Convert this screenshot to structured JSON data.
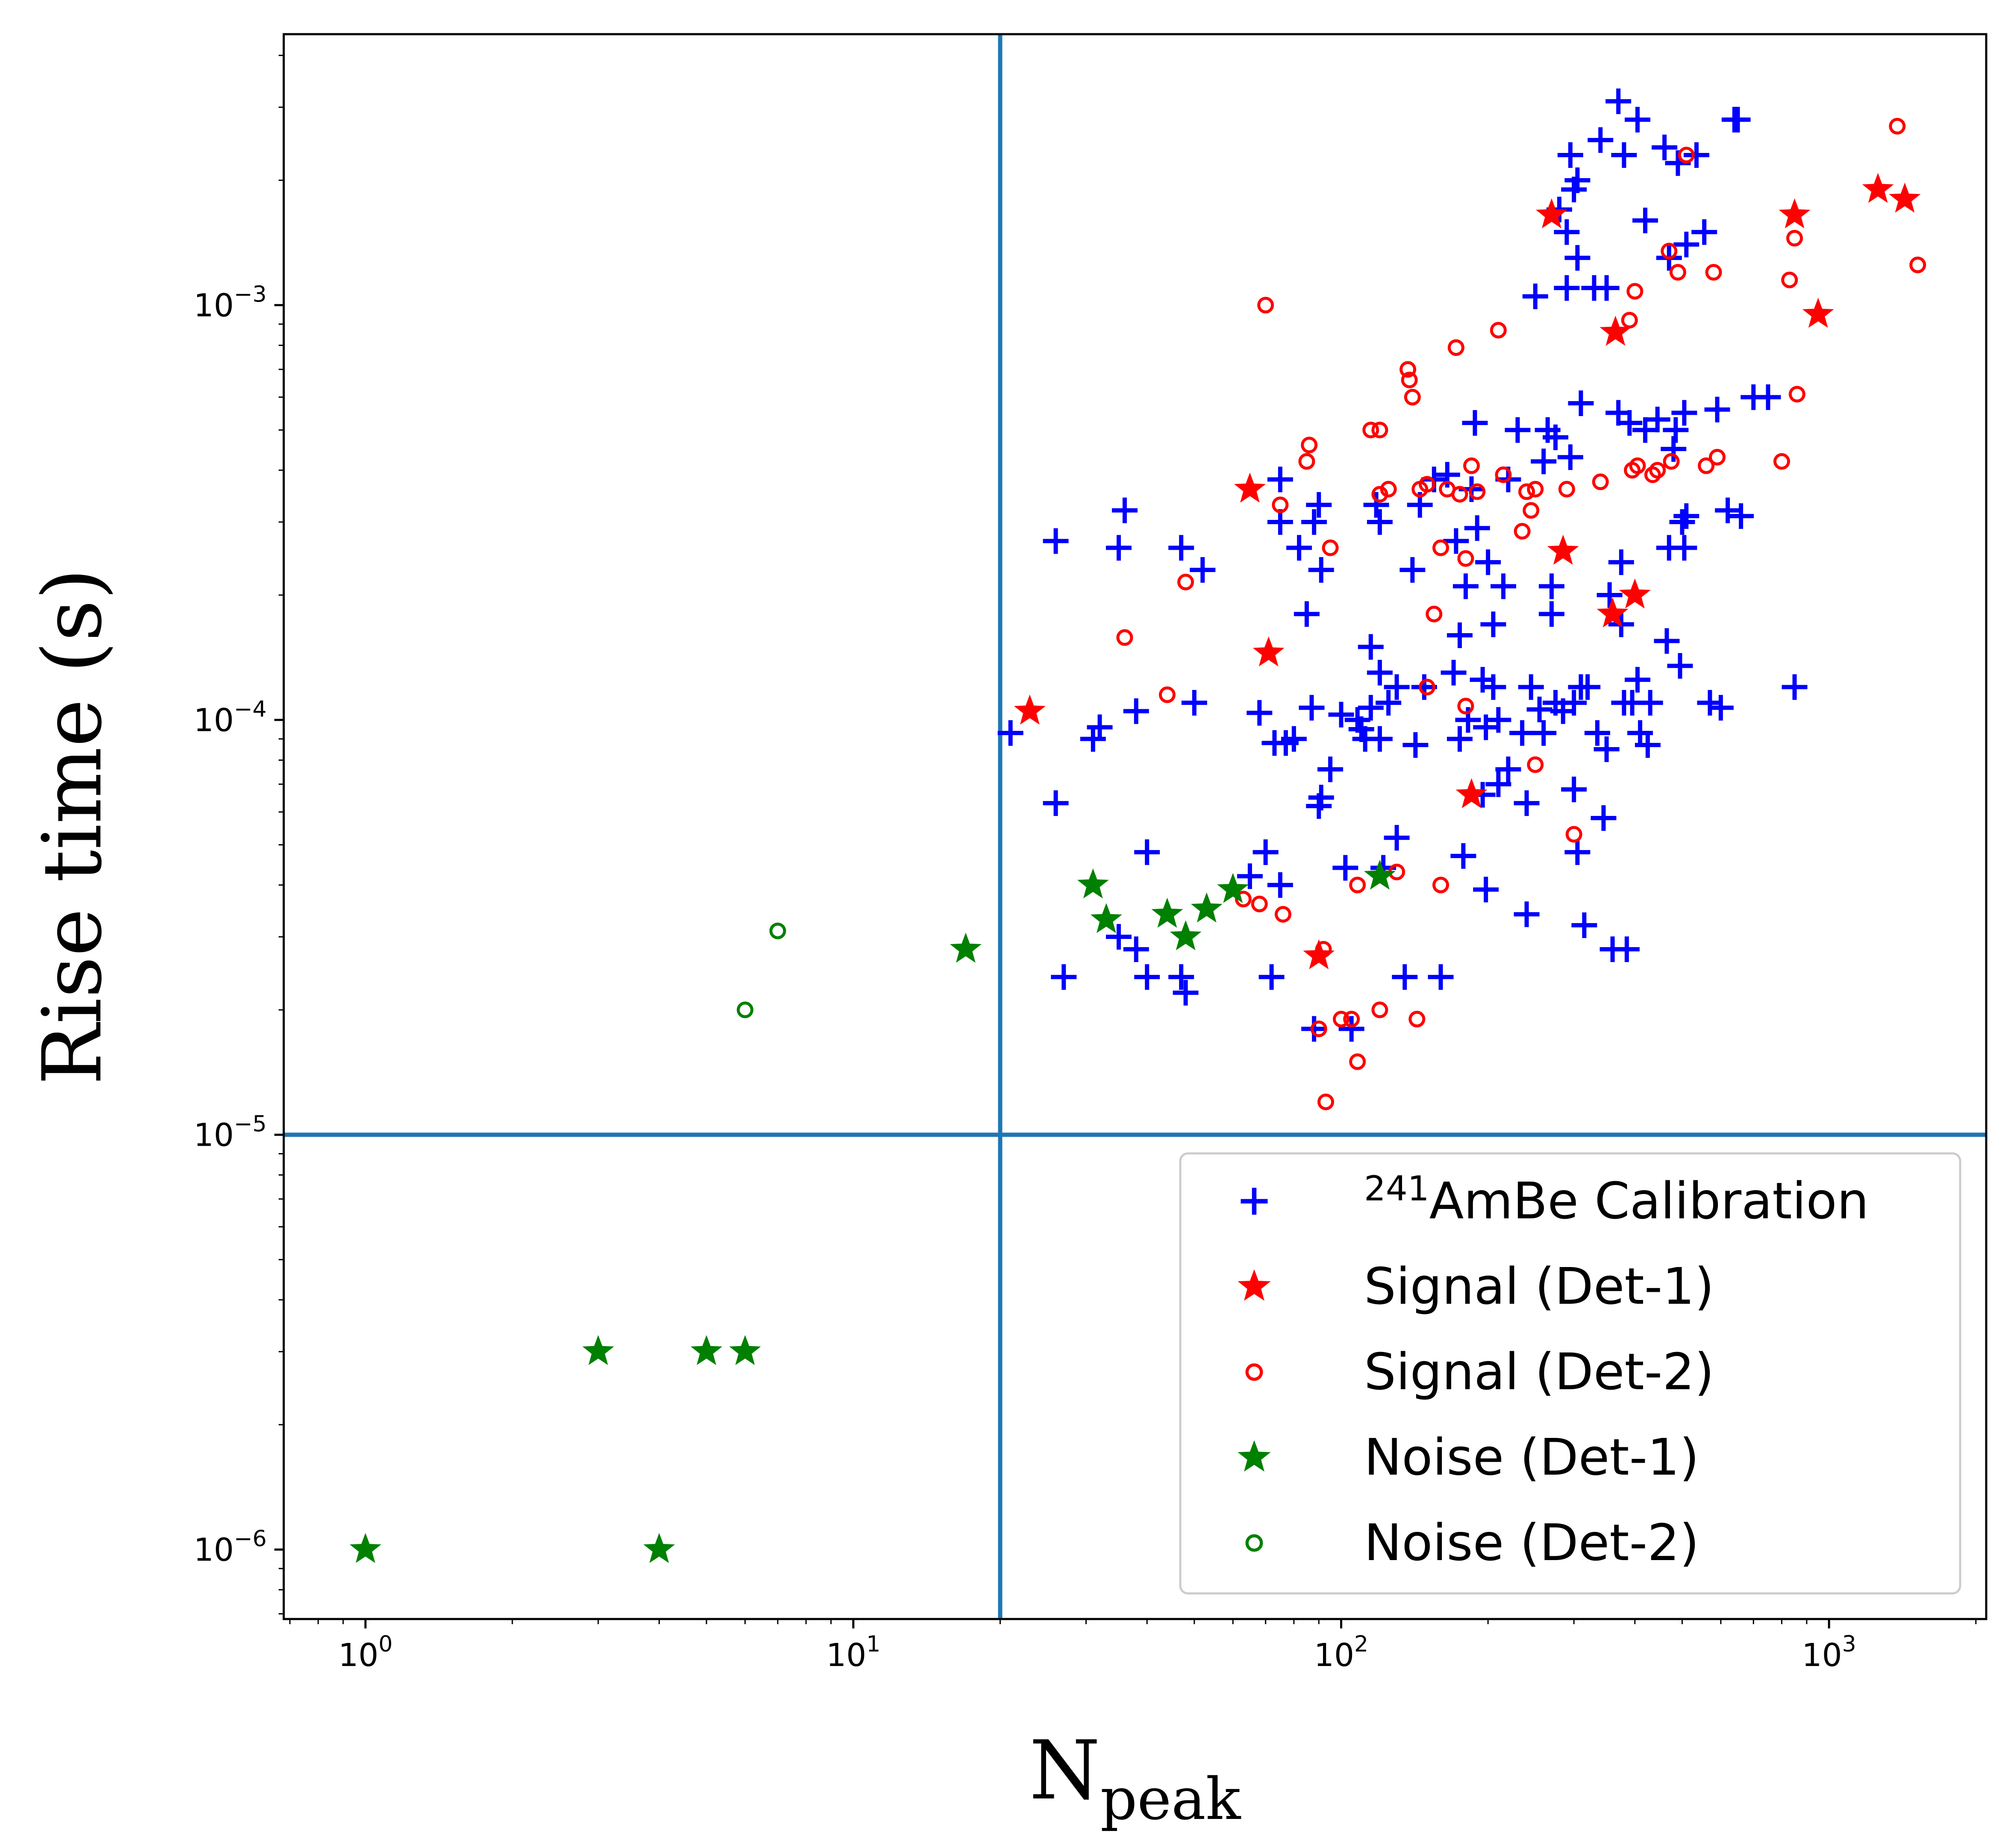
{
  "chart_data": {
    "type": "scatter",
    "xscale": "log",
    "yscale": "log",
    "xlim": [
      0.68,
      2100
    ],
    "ylim": [
      6.8e-07,
      0.0045
    ],
    "xlabel": {
      "main": "N",
      "sub": "peak"
    },
    "ylabel": "Rise time (s)",
    "x_ticks": [
      {
        "value": 1,
        "base": "10",
        "exp": "0"
      },
      {
        "value": 10,
        "base": "10",
        "exp": "1"
      },
      {
        "value": 100,
        "base": "10",
        "exp": "2"
      },
      {
        "value": 1000,
        "base": "10",
        "exp": "3"
      }
    ],
    "y_ticks": [
      {
        "value": 1e-06,
        "base": "10",
        "exp": "−6"
      },
      {
        "value": 1e-05,
        "base": "10",
        "exp": "−5"
      },
      {
        "value": 0.0001,
        "base": "10",
        "exp": "−4"
      },
      {
        "value": 0.001,
        "base": "10",
        "exp": "−3"
      }
    ],
    "reference_lines": {
      "vertical_x": 20,
      "horizontal_y": 1e-05,
      "color": "#1f77b4"
    },
    "legend_position": "lower-right",
    "series": [
      {
        "name": "AmBe Calibration",
        "name_prefix_superscript": "241",
        "marker": "plus",
        "color": "#0000ff",
        "points": [
          [
            21,
            9.3e-05
          ],
          [
            26,
            0.00027
          ],
          [
            26,
            6.3e-05
          ],
          [
            27,
            2.4e-05
          ],
          [
            31,
            9e-05
          ],
          [
            32,
            9.6e-05
          ],
          [
            35,
            0.00026
          ],
          [
            36,
            0.00032
          ],
          [
            35,
            3e-05
          ],
          [
            38,
            2.8e-05
          ],
          [
            38,
            0.000105
          ],
          [
            40,
            4.8e-05
          ],
          [
            40,
            2.4e-05
          ],
          [
            47,
            0.00026
          ],
          [
            47,
            2.4e-05
          ],
          [
            48,
            2.2e-05
          ],
          [
            50,
            0.00011
          ],
          [
            52,
            0.00023
          ],
          [
            65,
            4.2e-05
          ],
          [
            68,
            0.000104
          ],
          [
            70,
            4.8e-05
          ],
          [
            72,
            2.4e-05
          ],
          [
            73,
            8.8e-05
          ],
          [
            75,
            0.00038
          ],
          [
            75,
            0.0003
          ],
          [
            75,
            4e-05
          ],
          [
            77,
            8.8e-05
          ],
          [
            80,
            9e-05
          ],
          [
            82,
            0.00026
          ],
          [
            85,
            0.00018
          ],
          [
            87,
            0.000107
          ],
          [
            88,
            0.0003
          ],
          [
            88,
            1.8e-05
          ],
          [
            90,
            6.2e-05
          ],
          [
            90,
            0.00033
          ],
          [
            91,
            0.00023
          ],
          [
            91,
            6.5e-05
          ],
          [
            95,
            7.6e-05
          ],
          [
            100,
            0.000103
          ],
          [
            102,
            4.4e-05
          ],
          [
            105,
            1.8e-05
          ],
          [
            108,
            0.0001
          ],
          [
            110,
            9.5e-05
          ],
          [
            112,
            9e-05
          ],
          [
            115,
            0.000107
          ],
          [
            115,
            0.00015
          ],
          [
            118,
            0.00033
          ],
          [
            120,
            0.00013
          ],
          [
            120,
            9e-05
          ],
          [
            120,
            0.0003
          ],
          [
            122,
            4.4e-05
          ],
          [
            125,
            0.00011
          ],
          [
            130,
            0.00012
          ],
          [
            130,
            5.2e-05
          ],
          [
            135,
            2.4e-05
          ],
          [
            140,
            0.00023
          ],
          [
            142,
            8.7e-05
          ],
          [
            145,
            0.00033
          ],
          [
            148,
            0.00012
          ],
          [
            155,
            0.00038
          ],
          [
            160,
            2.4e-05
          ],
          [
            165,
            0.00039
          ],
          [
            170,
            0.00013
          ],
          [
            172,
            0.00027
          ],
          [
            175,
            9e-05
          ],
          [
            175,
            0.00016
          ],
          [
            178,
            4.7e-05
          ],
          [
            180,
            0.00021
          ],
          [
            182,
            0.0001
          ],
          [
            185,
            0.00036
          ],
          [
            188,
            0.00052
          ],
          [
            190,
            0.00029
          ],
          [
            195,
            0.000125
          ],
          [
            195,
            6.6e-05
          ],
          [
            198,
            3.9e-05
          ],
          [
            198,
            9.6e-05
          ],
          [
            200,
            0.00024
          ],
          [
            205,
            0.00017
          ],
          [
            205,
            0.00012
          ],
          [
            210,
            0.0001
          ],
          [
            210,
            7e-05
          ],
          [
            215,
            0.00021
          ],
          [
            220,
            0.00038
          ],
          [
            220,
            7.6e-05
          ],
          [
            230,
            0.0005
          ],
          [
            235,
            9.3e-05
          ],
          [
            240,
            6.3e-05
          ],
          [
            240,
            3.4e-05
          ],
          [
            245,
            0.00012
          ],
          [
            250,
            0.00105
          ],
          [
            255,
            0.000106
          ],
          [
            260,
            9.3e-05
          ],
          [
            260,
            0.00042
          ],
          [
            265,
            0.0005
          ],
          [
            270,
            0.00021
          ],
          [
            270,
            0.00018
          ],
          [
            275,
            0.00048
          ],
          [
            275,
            0.00011
          ],
          [
            280,
            0.0017
          ],
          [
            285,
            0.000105
          ],
          [
            290,
            0.0015
          ],
          [
            290,
            0.0011
          ],
          [
            295,
            0.0023
          ],
          [
            295,
            0.00043
          ],
          [
            300,
            0.0019
          ],
          [
            300,
            0.00011
          ],
          [
            300,
            6.8e-05
          ],
          [
            305,
            0.002
          ],
          [
            305,
            0.0013
          ],
          [
            305,
            4.8e-05
          ],
          [
            310,
            0.00058
          ],
          [
            310,
            0.00012
          ],
          [
            315,
            3.2e-05
          ],
          [
            320,
            0.00012
          ],
          [
            330,
            0.0011
          ],
          [
            335,
            9.3e-05
          ],
          [
            340,
            0.0025
          ],
          [
            345,
            5.8e-05
          ],
          [
            350,
            0.0011
          ],
          [
            350,
            8.5e-05
          ],
          [
            355,
            0.0002
          ],
          [
            360,
            2.8e-05
          ],
          [
            370,
            0.0031
          ],
          [
            370,
            0.00055
          ],
          [
            375,
            0.00024
          ],
          [
            375,
            0.00017
          ],
          [
            380,
            0.0023
          ],
          [
            380,
            0.00011
          ],
          [
            385,
            2.8e-05
          ],
          [
            390,
            0.00052
          ],
          [
            395,
            0.00011
          ],
          [
            405,
            0.0028
          ],
          [
            405,
            0.000125
          ],
          [
            410,
            9.3e-05
          ],
          [
            420,
            0.0016
          ],
          [
            420,
            0.0005
          ],
          [
            425,
            8.7e-05
          ],
          [
            430,
            0.00011
          ],
          [
            445,
            0.00053
          ],
          [
            460,
            0.0024
          ],
          [
            465,
            0.000155
          ],
          [
            470,
            0.0013
          ],
          [
            470,
            0.00026
          ],
          [
            480,
            0.00045
          ],
          [
            485,
            0.0005
          ],
          [
            490,
            0.0022
          ],
          [
            495,
            0.000135
          ],
          [
            500,
            0.0003
          ],
          [
            505,
            0.00055
          ],
          [
            505,
            0.00026
          ],
          [
            510,
            0.0014
          ],
          [
            510,
            0.00031
          ],
          [
            535,
            0.0023
          ],
          [
            555,
            0.0015
          ],
          [
            570,
            0.00011
          ],
          [
            590,
            0.00056
          ],
          [
            600,
            0.000107
          ],
          [
            620,
            0.00032
          ],
          [
            640,
            0.0028
          ],
          [
            650,
            0.0028
          ],
          [
            660,
            0.00031
          ],
          [
            700,
            0.0006
          ],
          [
            750,
            0.0006
          ],
          [
            850,
            0.00012
          ]
        ]
      },
      {
        "name": "Signal (Det-1)",
        "marker": "star",
        "color": "#ff0000",
        "points": [
          [
            23,
            0.000105
          ],
          [
            65,
            0.00036
          ],
          [
            71,
            0.000145
          ],
          [
            90,
            2.7e-05
          ],
          [
            185,
            6.6e-05
          ],
          [
            270,
            0.00165
          ],
          [
            285,
            0.000255
          ],
          [
            365,
            0.00086
          ],
          [
            360,
            0.00018
          ],
          [
            400,
            0.0002
          ],
          [
            850,
            0.00165
          ],
          [
            950,
            0.00095
          ],
          [
            1260,
            0.0019
          ],
          [
            1430,
            0.0018
          ]
        ]
      },
      {
        "name": "Signal (Det-2)",
        "marker": "circle-open",
        "color": "#ff0000",
        "points": [
          [
            36,
            0.000158
          ],
          [
            44,
            0.000115
          ],
          [
            48,
            0.000215
          ],
          [
            63,
            3.7e-05
          ],
          [
            68,
            3.6e-05
          ],
          [
            70,
            0.001
          ],
          [
            75,
            0.00033
          ],
          [
            76,
            3.4e-05
          ],
          [
            85,
            0.00042
          ],
          [
            86,
            0.00046
          ],
          [
            90,
            1.8e-05
          ],
          [
            92,
            2.8e-05
          ],
          [
            93,
            1.2e-05
          ],
          [
            95,
            0.00026
          ],
          [
            100,
            1.9e-05
          ],
          [
            105,
            1.9e-05
          ],
          [
            108,
            1.5e-05
          ],
          [
            108,
            4e-05
          ],
          [
            115,
            0.0005
          ],
          [
            120,
            0.00035
          ],
          [
            120,
            0.0005
          ],
          [
            120,
            2e-05
          ],
          [
            125,
            0.00036
          ],
          [
            130,
            4.3e-05
          ],
          [
            137,
            0.0007
          ],
          [
            138,
            0.00066
          ],
          [
            140,
            0.0006
          ],
          [
            143,
            1.9e-05
          ],
          [
            145,
            0.00036
          ],
          [
            150,
            0.00037
          ],
          [
            150,
            0.00012
          ],
          [
            155,
            0.00018
          ],
          [
            160,
            0.00026
          ],
          [
            160,
            4e-05
          ],
          [
            165,
            0.00036
          ],
          [
            172,
            0.00079
          ],
          [
            175,
            0.00035
          ],
          [
            180,
            0.000245
          ],
          [
            180,
            0.000108
          ],
          [
            185,
            0.00041
          ],
          [
            190,
            0.000355
          ],
          [
            210,
            0.00087
          ],
          [
            215,
            0.00039
          ],
          [
            235,
            0.000285
          ],
          [
            240,
            0.000355
          ],
          [
            245,
            0.00032
          ],
          [
            250,
            0.00036
          ],
          [
            250,
            7.8e-05
          ],
          [
            290,
            0.00036
          ],
          [
            300,
            5.3e-05
          ],
          [
            340,
            0.000375
          ],
          [
            390,
            0.00092
          ],
          [
            395,
            0.0004
          ],
          [
            400,
            0.00108
          ],
          [
            405,
            0.00041
          ],
          [
            435,
            0.00039
          ],
          [
            445,
            0.0004
          ],
          [
            470,
            0.00135
          ],
          [
            475,
            0.00042
          ],
          [
            490,
            0.0012
          ],
          [
            510,
            0.0023
          ],
          [
            560,
            0.00041
          ],
          [
            580,
            0.0012
          ],
          [
            590,
            0.00043
          ],
          [
            800,
            0.00042
          ],
          [
            830,
            0.00115
          ],
          [
            850,
            0.00145
          ],
          [
            860,
            0.00061
          ],
          [
            1380,
            0.0027
          ],
          [
            1520,
            0.00125
          ]
        ]
      },
      {
        "name": "Noise (Det-1)",
        "marker": "star",
        "color": "#008000",
        "points": [
          [
            1,
            1e-06
          ],
          [
            3,
            3e-06
          ],
          [
            4,
            1e-06
          ],
          [
            5,
            3e-06
          ],
          [
            6,
            3e-06
          ],
          [
            17,
            2.8e-05
          ],
          [
            31,
            4e-05
          ],
          [
            33,
            3.3e-05
          ],
          [
            44,
            3.4e-05
          ],
          [
            48,
            3e-05
          ],
          [
            53,
            3.5e-05
          ],
          [
            60,
            3.9e-05
          ],
          [
            120,
            4.2e-05
          ]
        ]
      },
      {
        "name": "Noise (Det-2)",
        "marker": "circle-open",
        "color": "#008000",
        "points": [
          [
            6,
            2e-05
          ],
          [
            7,
            3.1e-05
          ]
        ]
      }
    ]
  }
}
